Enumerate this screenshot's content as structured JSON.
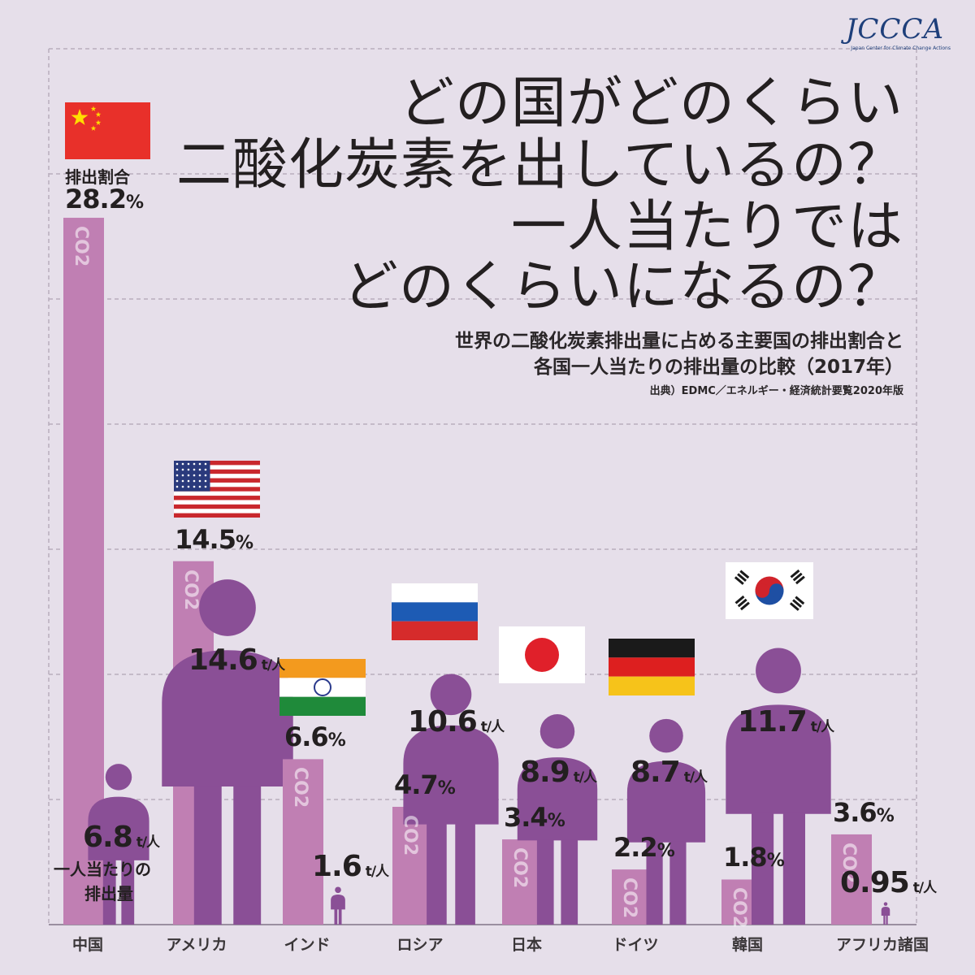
{
  "logo": {
    "text": "JCCCA",
    "subtext": "Japan Center for Climate Change Actions"
  },
  "title_lines": [
    "どの国がどのくらい",
    "二酸化炭素を出しているの？",
    "一人当たりでは",
    "どのくらいになるの？"
  ],
  "subtitle_lines": [
    "世界の二酸化炭素排出量に占める主要国の排出割合と",
    "各国一人当たりの排出量の比較（2017年）"
  ],
  "source": "出典）EDMC／エネルギー・経済統計要覧2020年版",
  "legend": {
    "share": "排出割合",
    "per_capita_line1": "一人当たりの",
    "per_capita_line2": "排出量"
  },
  "co2_label": "CO2",
  "share_unit": "%",
  "per_capita_unit": "t/人",
  "colors": {
    "background": "#e6dfea",
    "share_bar": "#c07fb3",
    "person": "#8a4f96",
    "grid": "#b8aebd"
  },
  "chart_data": {
    "type": "bar",
    "categories": [
      "中国",
      "アメリカ",
      "インド",
      "ロシア",
      "日本",
      "ドイツ",
      "韓国",
      "アフリカ諸国"
    ],
    "series": [
      {
        "name": "排出割合",
        "unit": "%",
        "values": [
          28.2,
          14.5,
          6.6,
          4.7,
          3.4,
          2.2,
          1.8,
          3.6
        ]
      },
      {
        "name": "一人当たりの排出量",
        "unit": "t/人",
        "values": [
          6.8,
          14.6,
          1.6,
          10.6,
          8.9,
          8.7,
          11.7,
          0.95
        ]
      }
    ],
    "share_labels": [
      "28.2",
      "14.5",
      "6.6",
      "4.7",
      "3.4",
      "2.2",
      "1.8",
      "3.6"
    ],
    "per_capita_labels": [
      "6.8",
      "14.6",
      "1.6",
      "10.6",
      "8.9",
      "8.7",
      "11.7",
      "0.95"
    ],
    "flags": [
      "china-flag",
      "usa-flag",
      "india-flag",
      "russia-flag",
      "japan-flag",
      "germany-flag",
      "korea-flag",
      ""
    ],
    "grid": true
  }
}
